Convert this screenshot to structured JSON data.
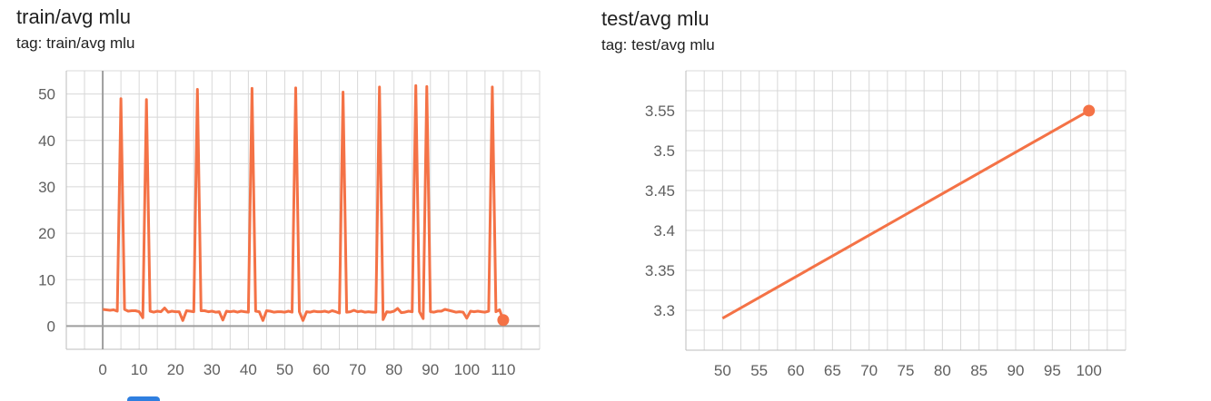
{
  "charts": [
    {
      "title": "train/avg mlu",
      "tag": "tag: train/avg mlu"
    },
    {
      "title": "test/avg mlu",
      "tag": "tag: test/avg mlu"
    }
  ],
  "colors": {
    "series": "#f47246",
    "grid": "#d8d8d8",
    "zero_axis": "#9e9e9e",
    "tick_text": "#5f5f5f"
  },
  "chart_data": [
    {
      "type": "line",
      "title": "train/avg mlu",
      "xlim": [
        -10,
        120
      ],
      "ylim": [
        -5,
        55
      ],
      "x_ticks": [
        0,
        10,
        20,
        30,
        40,
        50,
        60,
        70,
        80,
        90,
        100,
        110
      ],
      "y_ticks": [
        0,
        10,
        20,
        30,
        40,
        50
      ],
      "grid": true,
      "series": [
        {
          "x": [
            0,
            1,
            2,
            3,
            4,
            5,
            6,
            7,
            8,
            9,
            10,
            11,
            12,
            13,
            14,
            15,
            16,
            17,
            18,
            19,
            20,
            21,
            22,
            23,
            24,
            25,
            26,
            27,
            28,
            29,
            30,
            31,
            32,
            33,
            34,
            35,
            36,
            37,
            38,
            39,
            40,
            41,
            42,
            43,
            44,
            45,
            46,
            47,
            48,
            49,
            50,
            51,
            52,
            53,
            54,
            55,
            56,
            57,
            58,
            59,
            60,
            61,
            62,
            63,
            64,
            65,
            66,
            67,
            68,
            69,
            70,
            71,
            72,
            73,
            74,
            75,
            76,
            77,
            78,
            79,
            80,
            81,
            82,
            83,
            84,
            85,
            86,
            87,
            88,
            89,
            90,
            91,
            92,
            93,
            94,
            95,
            96,
            97,
            98,
            99,
            100,
            101,
            102,
            103,
            104,
            105,
            106,
            107,
            108,
            109,
            110
          ],
          "y": [
            3.6,
            3.5,
            3.4,
            3.5,
            3.2,
            49,
            3.6,
            3.2,
            3.3,
            3.3,
            3.1,
            1.8,
            48.8,
            3.2,
            3.0,
            3.2,
            3.1,
            3.9,
            3.0,
            3.2,
            3.1,
            3.1,
            1.2,
            3.3,
            3.2,
            3.1,
            51,
            3.3,
            3.3,
            3.1,
            3.2,
            3.0,
            3.1,
            1.3,
            3.2,
            3.1,
            3.2,
            3.0,
            3.2,
            3.1,
            3.0,
            51.2,
            3.2,
            3.1,
            1.2,
            3.3,
            3.2,
            3.0,
            3.1,
            3.1,
            3.0,
            3.2,
            3.0,
            51.3,
            3.1,
            1.2,
            3.1,
            3.0,
            3.2,
            3.1,
            3.1,
            3.2,
            3.0,
            3.3,
            3.1,
            2.8,
            50.4,
            3.0,
            3.1,
            3.4,
            3.1,
            3.2,
            3.0,
            3.1,
            3.0,
            3.0,
            51.5,
            1.4,
            3.1,
            3.0,
            3.2,
            3.8,
            2.9,
            3.0,
            3.2,
            3.1,
            51.8,
            3.1,
            1.6,
            51.6,
            3.1,
            3.0,
            3.2,
            3.2,
            3.6,
            3.4,
            3.2,
            3.0,
            3.1,
            3.0,
            1.7,
            3.2,
            3.1,
            3.2,
            3.1,
            3.0,
            3.2,
            51.5,
            3.1,
            3.5,
            1.3
          ]
        }
      ]
    },
    {
      "type": "line",
      "title": "test/avg mlu",
      "xlim": [
        45,
        105
      ],
      "ylim": [
        3.25,
        3.6
      ],
      "x_ticks": [
        50,
        55,
        60,
        65,
        70,
        75,
        80,
        85,
        90,
        95,
        100
      ],
      "y_ticks": [
        3.3,
        3.35,
        3.4,
        3.45,
        3.5,
        3.55
      ],
      "grid": true,
      "series": [
        {
          "x": [
            50,
            100
          ],
          "y": [
            3.29,
            3.55
          ]
        }
      ]
    }
  ]
}
